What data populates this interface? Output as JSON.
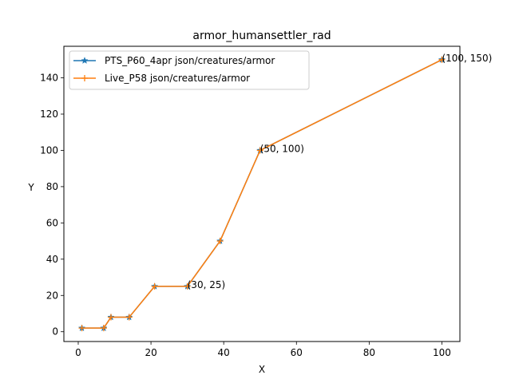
{
  "chart_data": {
    "type": "line",
    "title": "armor_humansettler_rad",
    "xlabel": "X",
    "ylabel": "Y",
    "xlim": [
      -3.95,
      104.95
    ],
    "ylim": [
      -5.4,
      157.4
    ],
    "xticks": [
      0,
      20,
      40,
      60,
      80,
      100
    ],
    "yticks": [
      0,
      20,
      40,
      60,
      80,
      100,
      120,
      140
    ],
    "grid": false,
    "legend_position": "upper-left",
    "series": [
      {
        "name": "PTS_P60_4apr json/creatures/armor",
        "color": "#1f77b4",
        "marker": "star",
        "x": [
          1,
          7,
          9,
          14,
          21,
          30,
          39,
          50,
          100
        ],
        "y": [
          2,
          2,
          8,
          8,
          25,
          25,
          50,
          100,
          150
        ]
      },
      {
        "name": "Live_P58 json/creatures/armor",
        "color": "#ff7f0e",
        "marker": "plus",
        "x": [
          1,
          7,
          9,
          14,
          21,
          30,
          39,
          50,
          100
        ],
        "y": [
          2,
          2,
          8,
          8,
          25,
          25,
          50,
          100,
          150
        ]
      }
    ],
    "annotations": [
      {
        "x": 30,
        "y": 25,
        "text": "(30, 25)"
      },
      {
        "x": 50,
        "y": 100,
        "text": "(50, 100)"
      },
      {
        "x": 100,
        "y": 150,
        "text": "(100, 150)"
      }
    ]
  }
}
